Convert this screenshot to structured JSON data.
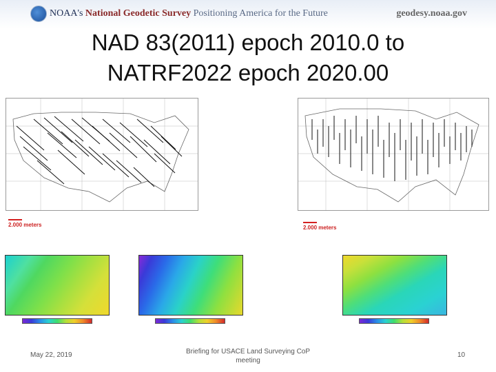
{
  "header": {
    "agency_prefix": "NOAA's",
    "agency_name": "National Geodetic Survey",
    "tagline": "Positioning America for the Future",
    "website": "geodesy.noaa.gov"
  },
  "slide": {
    "title_line1": "NAD 83(2011) epoch 2010.0 to",
    "title_line2": "NATRF2022 epoch 2020.00"
  },
  "maps": {
    "left_scale_label": "2.000 meters",
    "right_scale_label": "2.000 meters"
  },
  "footer": {
    "date": "May 22, 2019",
    "center_text": "Briefing for USACE Land Surveying CoP meeting",
    "page_number": "10"
  },
  "colors": {
    "scale_red": "#d42020",
    "title_text": "#111111"
  }
}
